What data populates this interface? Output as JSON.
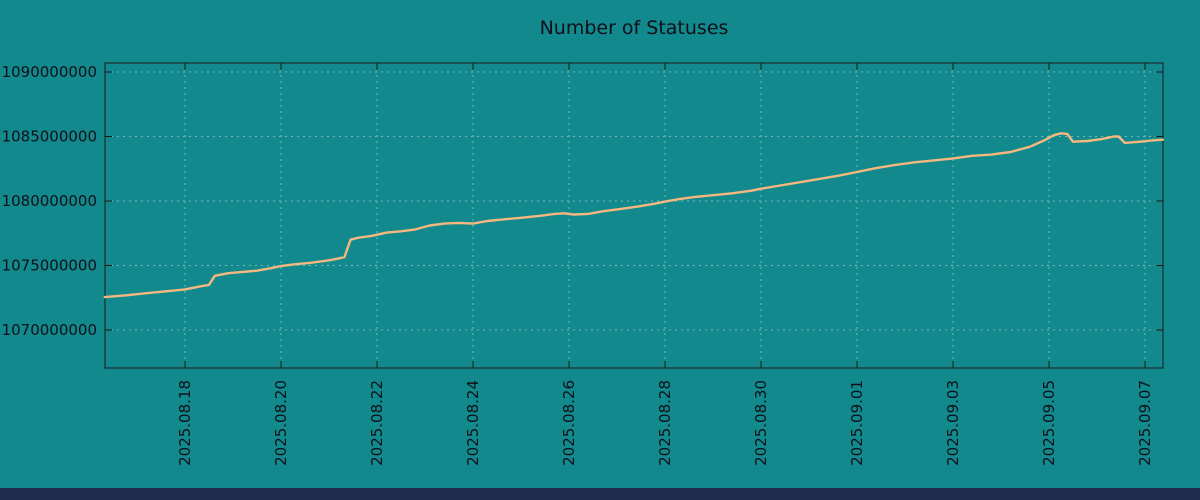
{
  "page": {
    "background_color": "#11898d",
    "bottom_bar_color": "#1f2c4e",
    "text_color": "#101018",
    "grid_color": "#8fc6c7",
    "border_color": "#1a1a1a"
  },
  "chart_data": {
    "type": "line",
    "title": "Number of Statuses",
    "xlabel": "",
    "ylabel": "",
    "legend": false,
    "grid": true,
    "x_unit": "days since 2025-08-18",
    "xlim": [
      -1.667,
      20.375
    ],
    "ylim": [
      1067000000,
      1090750000
    ],
    "y_ticks": [
      1070000000,
      1075000000,
      1080000000,
      1085000000,
      1090000000
    ],
    "x_ticks": [
      {
        "d": 0,
        "label": "2025.08.18"
      },
      {
        "d": 2,
        "label": "2025.08.20"
      },
      {
        "d": 4,
        "label": "2025.08.22"
      },
      {
        "d": 6,
        "label": "2025.08.24"
      },
      {
        "d": 8,
        "label": "2025.08.26"
      },
      {
        "d": 10,
        "label": "2025.08.28"
      },
      {
        "d": 12,
        "label": "2025.08.30"
      },
      {
        "d": 14,
        "label": "2025.09.01"
      },
      {
        "d": 16,
        "label": "2025.09.03"
      },
      {
        "d": 18,
        "label": "2025.09.05"
      },
      {
        "d": 20,
        "label": "2025.09.07"
      }
    ],
    "series": [
      {
        "name": "statuses",
        "color": "#f6b87e",
        "points": [
          [
            -1.67,
            1072550000
          ],
          [
            -1.2,
            1072700000
          ],
          [
            -0.8,
            1072850000
          ],
          [
            -0.4,
            1073000000
          ],
          [
            0.0,
            1073150000
          ],
          [
            0.35,
            1073400000
          ],
          [
            0.5,
            1073500000
          ],
          [
            0.62,
            1074200000
          ],
          [
            0.9,
            1074400000
          ],
          [
            1.2,
            1074500000
          ],
          [
            1.5,
            1074600000
          ],
          [
            1.8,
            1074800000
          ],
          [
            2.0,
            1074950000
          ],
          [
            2.3,
            1075100000
          ],
          [
            2.6,
            1075200000
          ],
          [
            3.0,
            1075400000
          ],
          [
            3.2,
            1075550000
          ],
          [
            3.32,
            1075650000
          ],
          [
            3.45,
            1077000000
          ],
          [
            3.6,
            1077150000
          ],
          [
            3.9,
            1077300000
          ],
          [
            4.2,
            1077550000
          ],
          [
            4.5,
            1077650000
          ],
          [
            4.8,
            1077800000
          ],
          [
            5.1,
            1078100000
          ],
          [
            5.4,
            1078250000
          ],
          [
            5.7,
            1078300000
          ],
          [
            6.0,
            1078250000
          ],
          [
            6.3,
            1078450000
          ],
          [
            6.7,
            1078600000
          ],
          [
            7.0,
            1078700000
          ],
          [
            7.4,
            1078850000
          ],
          [
            7.7,
            1079000000
          ],
          [
            7.9,
            1079050000
          ],
          [
            8.1,
            1078950000
          ],
          [
            8.4,
            1079000000
          ],
          [
            8.7,
            1079200000
          ],
          [
            9.0,
            1079350000
          ],
          [
            9.4,
            1079550000
          ],
          [
            9.8,
            1079800000
          ],
          [
            10.0,
            1079950000
          ],
          [
            10.3,
            1080150000
          ],
          [
            10.6,
            1080300000
          ],
          [
            11.0,
            1080450000
          ],
          [
            11.4,
            1080600000
          ],
          [
            11.8,
            1080800000
          ],
          [
            12.0,
            1080950000
          ],
          [
            12.4,
            1081200000
          ],
          [
            12.8,
            1081450000
          ],
          [
            13.2,
            1081700000
          ],
          [
            13.6,
            1081950000
          ],
          [
            14.0,
            1082250000
          ],
          [
            14.4,
            1082550000
          ],
          [
            14.8,
            1082800000
          ],
          [
            15.2,
            1083000000
          ],
          [
            15.6,
            1083150000
          ],
          [
            16.0,
            1083300000
          ],
          [
            16.4,
            1083500000
          ],
          [
            16.8,
            1083600000
          ],
          [
            17.2,
            1083800000
          ],
          [
            17.6,
            1084200000
          ],
          [
            17.9,
            1084700000
          ],
          [
            18.1,
            1085100000
          ],
          [
            18.25,
            1085250000
          ],
          [
            18.38,
            1085200000
          ],
          [
            18.5,
            1084600000
          ],
          [
            18.8,
            1084650000
          ],
          [
            19.1,
            1084800000
          ],
          [
            19.35,
            1085000000
          ],
          [
            19.45,
            1085000000
          ],
          [
            19.58,
            1084500000
          ],
          [
            19.9,
            1084600000
          ],
          [
            20.15,
            1084700000
          ],
          [
            20.37,
            1084750000
          ]
        ]
      }
    ]
  }
}
